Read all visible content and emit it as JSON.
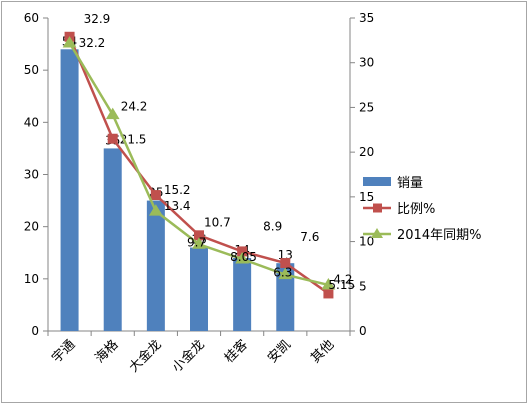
{
  "chart_data": {
    "type": "bar",
    "categories": [
      "宇通",
      "海格",
      "大金龙",
      "小金龙",
      "桂客",
      "安凯",
      "其他"
    ],
    "series": [
      {
        "name": "销量",
        "type": "bar",
        "axis": "left",
        "values": [
          54,
          35,
          25,
          16,
          14,
          13,
          null
        ],
        "labels": [
          "54",
          "35",
          "25",
          "16",
          "14",
          "13",
          ""
        ],
        "color": "#4f81bd"
      },
      {
        "name": "比例%",
        "type": "line",
        "axis": "right",
        "marker": "square",
        "values": [
          32.9,
          21.5,
          15.2,
          10.7,
          8.9,
          7.6,
          4.2
        ],
        "labels": [
          "32.9",
          "21.5",
          "15.2",
          "10.7",
          "8.9",
          "7.6",
          "4.2"
        ],
        "color": "#c0504d"
      },
      {
        "name": "2014年同期%",
        "type": "line",
        "axis": "right",
        "marker": "triangle",
        "values": [
          32.2,
          24.2,
          13.4,
          9.7,
          8.05,
          6.3,
          5.15
        ],
        "labels": [
          "32.2",
          "24.2",
          "13.4",
          "9.7",
          "8.05",
          "6.3",
          "5.15"
        ],
        "color": "#9bbb59"
      }
    ],
    "y_left": {
      "min": 0,
      "max": 60,
      "step": 10,
      "ticks": [
        "0",
        "10",
        "20",
        "30",
        "40",
        "50",
        "60"
      ]
    },
    "y_right": {
      "min": 0,
      "max": 35,
      "step": 5,
      "ticks": [
        "0",
        "5",
        "10",
        "15",
        "20",
        "25",
        "30",
        "35"
      ]
    },
    "grid": false,
    "legend_position": "right"
  }
}
